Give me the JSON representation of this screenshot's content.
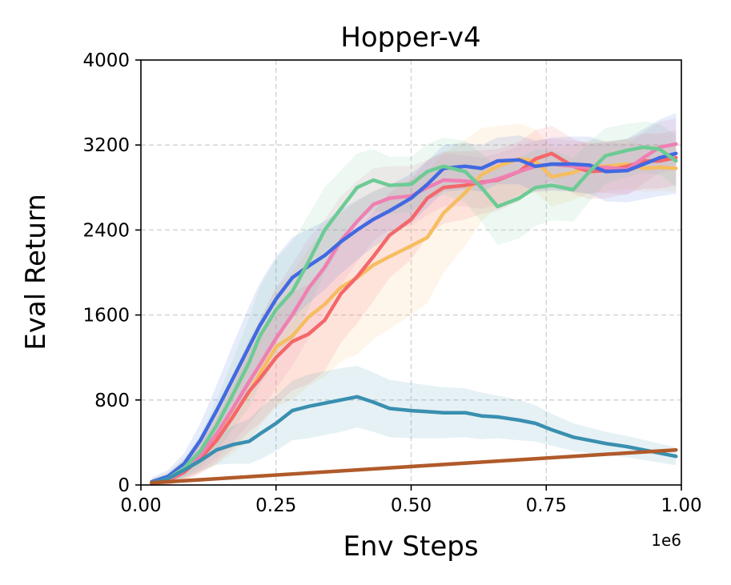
{
  "chart_data": {
    "type": "line",
    "title": "Hopper-v4",
    "xlabel": "Env Steps",
    "ylabel": "Eval Return",
    "x_offset_label": "1e6",
    "xlim": [
      0.0,
      1.0
    ],
    "ylim": [
      0,
      4000
    ],
    "xticks": [
      0.0,
      0.25,
      0.5,
      0.75,
      1.0
    ],
    "xtick_labels": [
      "0.00",
      "0.25",
      "0.50",
      "0.75",
      "1.00"
    ],
    "yticks": [
      0,
      800,
      1600,
      2400,
      3200,
      4000
    ],
    "ytick_labels": [
      "0",
      "800",
      "1600",
      "2400",
      "3200",
      "4000"
    ],
    "grid": true,
    "series": [
      {
        "name": "yellow",
        "color": "#f6bd60",
        "x": [
          0.02,
          0.05,
          0.08,
          0.11,
          0.14,
          0.17,
          0.2,
          0.22,
          0.25,
          0.28,
          0.31,
          0.34,
          0.37,
          0.4,
          0.43,
          0.46,
          0.5,
          0.53,
          0.56,
          0.6,
          0.63,
          0.66,
          0.7,
          0.73,
          0.76,
          0.8,
          0.83,
          0.86,
          0.9,
          0.93,
          0.96,
          0.99
        ],
        "y": [
          20,
          60,
          150,
          270,
          440,
          650,
          870,
          1050,
          1300,
          1400,
          1580,
          1700,
          1860,
          1950,
          2070,
          2150,
          2250,
          2330,
          2560,
          2750,
          2920,
          3000,
          3070,
          3050,
          2900,
          2940,
          3000,
          3000,
          3020,
          2980,
          2990,
          2980
        ],
        "band": [
          40,
          60,
          100,
          160,
          250,
          350,
          450,
          500,
          560,
          600,
          650,
          680,
          700,
          720,
          700,
          680,
          650,
          620,
          560,
          500,
          440,
          380,
          330,
          300,
          280,
          260,
          250,
          240,
          230,
          220,
          220,
          220
        ]
      },
      {
        "name": "red",
        "color": "#f4676a",
        "x": [
          0.02,
          0.05,
          0.08,
          0.11,
          0.14,
          0.17,
          0.2,
          0.22,
          0.25,
          0.28,
          0.31,
          0.34,
          0.37,
          0.4,
          0.43,
          0.46,
          0.5,
          0.53,
          0.56,
          0.6,
          0.63,
          0.66,
          0.7,
          0.73,
          0.76,
          0.8,
          0.83,
          0.86,
          0.9,
          0.93,
          0.96,
          0.99
        ],
        "y": [
          10,
          40,
          120,
          250,
          420,
          640,
          880,
          1000,
          1200,
          1350,
          1420,
          1550,
          1800,
          1960,
          2150,
          2350,
          2500,
          2700,
          2800,
          2820,
          2850,
          2870,
          2950,
          3070,
          3120,
          3000,
          2950,
          2960,
          3000,
          3050,
          3050,
          3080
        ],
        "band": [
          30,
          50,
          90,
          140,
          210,
          300,
          380,
          420,
          450,
          460,
          470,
          480,
          460,
          440,
          420,
          400,
          380,
          360,
          340,
          320,
          300,
          290,
          280,
          270,
          260,
          260,
          260,
          260,
          260,
          260,
          260,
          260
        ]
      },
      {
        "name": "pink",
        "color": "#ef7fb3",
        "x": [
          0.02,
          0.05,
          0.08,
          0.11,
          0.14,
          0.17,
          0.2,
          0.22,
          0.25,
          0.28,
          0.31,
          0.34,
          0.37,
          0.4,
          0.43,
          0.46,
          0.5,
          0.53,
          0.56,
          0.6,
          0.63,
          0.66,
          0.7,
          0.73,
          0.76,
          0.8,
          0.83,
          0.86,
          0.9,
          0.93,
          0.96,
          0.99
        ],
        "y": [
          15,
          50,
          140,
          280,
          480,
          720,
          970,
          1130,
          1380,
          1600,
          1850,
          2050,
          2300,
          2480,
          2640,
          2700,
          2720,
          2800,
          2870,
          2860,
          2840,
          2880,
          2950,
          3000,
          3020,
          3000,
          2980,
          2990,
          2970,
          3080,
          3180,
          3210
        ],
        "band": [
          30,
          50,
          90,
          150,
          230,
          320,
          400,
          430,
          470,
          480,
          470,
          450,
          420,
          380,
          340,
          300,
          280,
          260,
          250,
          240,
          240,
          240,
          240,
          240,
          240,
          240,
          240,
          240,
          240,
          240,
          240,
          240
        ]
      },
      {
        "name": "blue",
        "color": "#4169e1",
        "x": [
          0.02,
          0.05,
          0.08,
          0.11,
          0.14,
          0.17,
          0.2,
          0.22,
          0.25,
          0.28,
          0.31,
          0.34,
          0.37,
          0.4,
          0.43,
          0.46,
          0.5,
          0.53,
          0.56,
          0.6,
          0.63,
          0.66,
          0.7,
          0.73,
          0.76,
          0.8,
          0.83,
          0.86,
          0.9,
          0.93,
          0.96,
          0.99
        ],
        "y": [
          30,
          80,
          200,
          420,
          700,
          1000,
          1300,
          1500,
          1750,
          1950,
          2060,
          2160,
          2290,
          2400,
          2500,
          2580,
          2700,
          2830,
          2980,
          3000,
          2980,
          3050,
          3060,
          3000,
          3020,
          3020,
          3010,
          2950,
          2960,
          3020,
          3080,
          3120
        ],
        "band": [
          40,
          60,
          100,
          160,
          240,
          320,
          380,
          400,
          400,
          380,
          350,
          320,
          300,
          280,
          260,
          240,
          230,
          220,
          220,
          220,
          220,
          220,
          230,
          240,
          250,
          260,
          270,
          280,
          300,
          330,
          360,
          380
        ]
      },
      {
        "name": "green",
        "color": "#6ccb94",
        "x": [
          0.02,
          0.05,
          0.08,
          0.11,
          0.14,
          0.17,
          0.2,
          0.22,
          0.25,
          0.28,
          0.31,
          0.34,
          0.37,
          0.4,
          0.43,
          0.46,
          0.5,
          0.53,
          0.56,
          0.6,
          0.63,
          0.66,
          0.7,
          0.73,
          0.76,
          0.8,
          0.83,
          0.86,
          0.9,
          0.93,
          0.96,
          0.99
        ],
        "y": [
          20,
          60,
          160,
          320,
          560,
          850,
          1150,
          1400,
          1650,
          1820,
          2100,
          2400,
          2600,
          2800,
          2870,
          2820,
          2830,
          2950,
          3000,
          2950,
          2800,
          2620,
          2700,
          2800,
          2820,
          2780,
          2950,
          3100,
          3150,
          3180,
          3160,
          3050
        ],
        "band": [
          30,
          50,
          90,
          150,
          240,
          330,
          420,
          460,
          480,
          470,
          440,
          400,
          360,
          320,
          290,
          270,
          260,
          260,
          270,
          290,
          320,
          360,
          380,
          360,
          330,
          300,
          280,
          260,
          250,
          240,
          240,
          240
        ]
      },
      {
        "name": "teal",
        "color": "#3a8fb0",
        "x": [
          0.02,
          0.05,
          0.08,
          0.11,
          0.14,
          0.17,
          0.2,
          0.22,
          0.25,
          0.28,
          0.31,
          0.34,
          0.37,
          0.4,
          0.43,
          0.46,
          0.5,
          0.53,
          0.56,
          0.6,
          0.63,
          0.66,
          0.7,
          0.73,
          0.76,
          0.8,
          0.83,
          0.86,
          0.9,
          0.93,
          0.96,
          0.99
        ],
        "y": [
          20,
          60,
          140,
          230,
          330,
          380,
          410,
          480,
          580,
          700,
          740,
          770,
          800,
          830,
          780,
          720,
          700,
          690,
          680,
          680,
          650,
          640,
          610,
          580,
          520,
          450,
          420,
          390,
          360,
          330,
          300,
          270
        ],
        "band": [
          20,
          40,
          70,
          100,
          140,
          180,
          210,
          240,
          260,
          280,
          300,
          300,
          300,
          290,
          280,
          270,
          260,
          250,
          240,
          230,
          220,
          200,
          190,
          170,
          150,
          130,
          120,
          110,
          100,
          95,
          90,
          85
        ]
      },
      {
        "name": "brown",
        "color": "#b05a2a",
        "x": [
          0.02,
          0.99
        ],
        "y": [
          20,
          330
        ],
        "band": [
          0,
          0
        ]
      }
    ]
  }
}
